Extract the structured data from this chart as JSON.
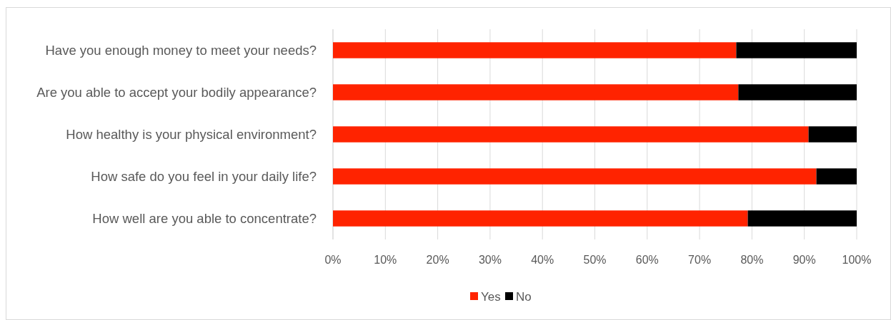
{
  "chart_data": {
    "type": "bar",
    "orientation": "horizontal",
    "stacked": true,
    "categories": [
      "Have you enough money to meet your needs?",
      "Are you able to accept your bodily appearance?",
      "How healthy is your physical environment?",
      "How safe do you feel in your daily life?",
      "How well are you able to concentrate?"
    ],
    "series": [
      {
        "name": "Yes",
        "color": "#ff2300",
        "values": [
          77.0,
          77.4,
          90.8,
          92.3,
          79.2
        ]
      },
      {
        "name": "No",
        "color": "#000000",
        "values": [
          23.0,
          22.6,
          9.2,
          7.7,
          20.8
        ]
      }
    ],
    "xlim": [
      0,
      100
    ],
    "xticks": [
      {
        "value": 0,
        "label": "0%"
      },
      {
        "value": 10,
        "label": "10%"
      },
      {
        "value": 20,
        "label": "20%"
      },
      {
        "value": 30,
        "label": "30%"
      },
      {
        "value": 40,
        "label": "40%"
      },
      {
        "value": 50,
        "label": "50%"
      },
      {
        "value": 60,
        "label": "60%"
      },
      {
        "value": 70,
        "label": "70%"
      },
      {
        "value": 80,
        "label": "80%"
      },
      {
        "value": 90,
        "label": "90%"
      },
      {
        "value": 100,
        "label": "100%"
      }
    ],
    "grid": "x",
    "legend": "bottom"
  }
}
